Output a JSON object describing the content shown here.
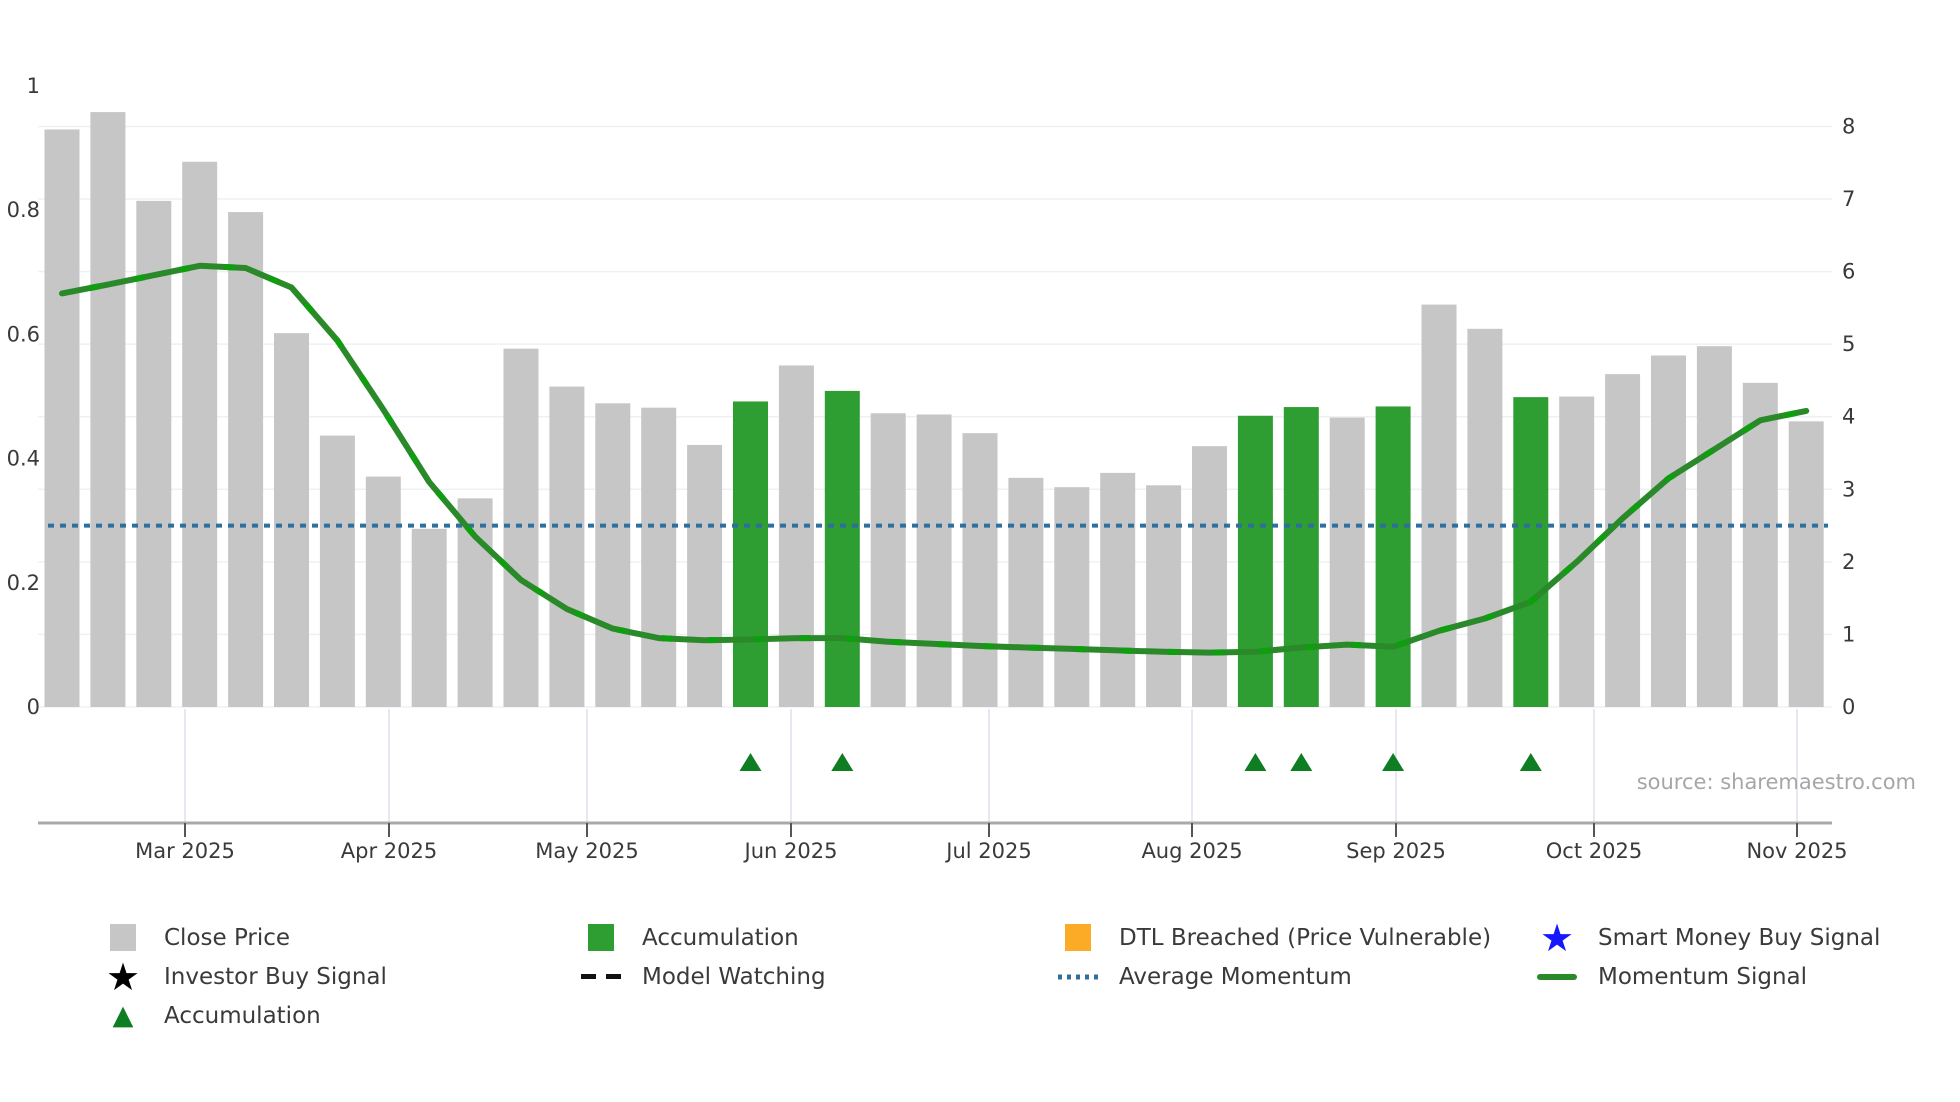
{
  "chart_data": {
    "type": "bar",
    "title": "",
    "x_tick_labels": [
      "Mar 2025",
      "Apr 2025",
      "May 2025",
      "Jun 2025",
      "Jul 2025",
      "Aug 2025",
      "Sep 2025",
      "Oct 2025",
      "Nov 2025"
    ],
    "left_axis": {
      "label": "",
      "range": [
        0,
        1
      ],
      "tick_labels": [
        "0",
        "0.2",
        "0.4",
        "0.6",
        "0.8",
        "1"
      ],
      "tick_values": [
        0,
        0.2,
        0.4,
        0.6,
        0.8,
        1
      ]
    },
    "right_axis": {
      "label": "",
      "range": [
        0,
        8
      ],
      "tick_labels": [
        "0",
        "1",
        "2",
        "3",
        "4",
        "5",
        "6",
        "7",
        "8"
      ],
      "tick_values": [
        0,
        1,
        2,
        3,
        4,
        5,
        6,
        7,
        8
      ]
    },
    "series": [
      {
        "name": "Close Price / Accumulation bars",
        "type": "bar",
        "values": [
          0.93,
          0.958,
          0.815,
          0.878,
          0.797,
          0.602,
          0.437,
          0.371,
          0.287,
          0.336,
          0.577,
          0.516,
          0.489,
          0.482,
          0.422,
          0.492,
          0.55,
          0.509,
          0.473,
          0.471,
          0.441,
          0.369,
          0.354,
          0.377,
          0.357,
          0.42,
          0.469,
          0.483,
          0.466,
          0.484,
          0.648,
          0.609,
          0.499,
          0.5,
          0.536,
          0.566,
          0.581,
          0.522,
          0.46
        ],
        "states": [
          "close",
          "close",
          "close",
          "close",
          "close",
          "close",
          "close",
          "close",
          "close",
          "close",
          "close",
          "close",
          "close",
          "close",
          "close",
          "accumulation",
          "close",
          "accumulation",
          "close",
          "close",
          "close",
          "close",
          "close",
          "close",
          "close",
          "close",
          "accumulation",
          "accumulation",
          "close",
          "accumulation",
          "close",
          "close",
          "accumulation",
          "close",
          "close",
          "close",
          "close",
          "close",
          "close"
        ]
      },
      {
        "name": "Momentum Signal",
        "type": "line",
        "axis": "right",
        "values": [
          5.7,
          5.82,
          5.95,
          6.08,
          6.05,
          5.78,
          5.05,
          4.1,
          3.1,
          2.35,
          1.75,
          1.35,
          1.08,
          0.95,
          0.92,
          0.93,
          0.95,
          0.95,
          0.9,
          0.87,
          0.84,
          0.82,
          0.8,
          0.78,
          0.76,
          0.75,
          0.76,
          0.82,
          0.86,
          0.83,
          1.05,
          1.22,
          1.45,
          2.0,
          2.6,
          3.15,
          3.55,
          3.95,
          4.08
        ]
      }
    ],
    "average_momentum": {
      "value": 2.5,
      "axis": "right",
      "style": "dotted"
    },
    "model_watching_dash_overlay": true,
    "accumulation_marker_indices": [
      15,
      17,
      26,
      27,
      29,
      32
    ],
    "grid": "horizontal-on",
    "legend_position": "bottom"
  },
  "colors": {
    "close_bar": "#c6c6c6",
    "accumulation_bar": "#2f9e32",
    "momentum_line": "#2a8a2a",
    "model_watching_dash": "#0d9f0d",
    "average_momentum": "#2e6f9e",
    "accumulation_marker": "#0f7d22",
    "dtl_breached": "#fbab26",
    "smart_money_star": "#1616ff",
    "investor_star": "#000000",
    "axis_text": "#3a3a3a",
    "gridline": "#eef0f6",
    "band_gridline": "#dde1ec",
    "spine": "#a9a9a9"
  },
  "legend": {
    "columns": [
      {
        "items": [
          {
            "swatch": "gray-square",
            "label": "Close Price"
          },
          {
            "swatch": "black-star",
            "label": "Investor Buy Signal"
          },
          {
            "swatch": "green-triangle",
            "label": "Accumulation"
          }
        ]
      },
      {
        "items": [
          {
            "swatch": "green-square",
            "label": "Accumulation"
          },
          {
            "swatch": "black-dash",
            "label": "Model Watching"
          }
        ]
      },
      {
        "items": [
          {
            "swatch": "orange-square",
            "label": "DTL Breached (Price Vulnerable)"
          },
          {
            "swatch": "blue-dotted",
            "label": "Average Momentum"
          }
        ]
      },
      {
        "items": [
          {
            "swatch": "blue-star",
            "label": "Smart Money Buy Signal"
          },
          {
            "swatch": "green-line",
            "label": "Momentum Signal"
          }
        ]
      }
    ]
  },
  "source": {
    "text": "source: sharemaestro.com"
  }
}
